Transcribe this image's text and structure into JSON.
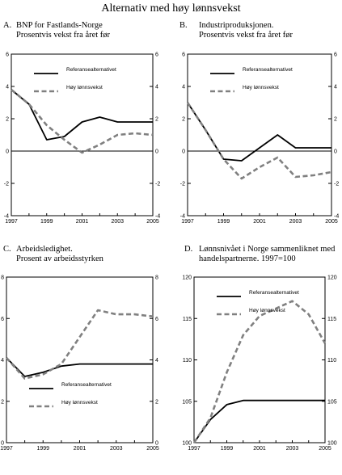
{
  "page": {
    "title": "Alternativ med høy lønnsvekst"
  },
  "chart_data": [
    {
      "type": "line",
      "panel_letter": "A.",
      "title_lines": [
        "BNP for Fastlands-Norge",
        "Prosentvis vekst fra året før"
      ],
      "x": [
        1997,
        1998,
        1999,
        2000,
        2001,
        2002,
        2003,
        2004,
        2005
      ],
      "xticks": [
        "1997",
        "1999",
        "2001",
        "2003",
        "2005"
      ],
      "ylim": [
        -4,
        6
      ],
      "yticks": [
        "-4",
        "-2",
        "0",
        "2",
        "4",
        "6"
      ],
      "zero_line": true,
      "legend_position": "top-left",
      "series": [
        {
          "name": "Referansealternativet",
          "style": "solid",
          "values": [
            3.8,
            2.9,
            0.7,
            0.9,
            1.8,
            2.1,
            1.8,
            1.8,
            1.8
          ]
        },
        {
          "name": "Høy lønnsvekst",
          "style": "dashed",
          "values": [
            3.8,
            2.9,
            1.6,
            0.7,
            -0.1,
            0.4,
            1.0,
            1.1,
            1.0
          ]
        }
      ]
    },
    {
      "type": "line",
      "panel_letter": "B.",
      "title_lines": [
        "Industriproduksjonen.",
        "Prosentvis vekst fra året før"
      ],
      "x": [
        1997,
        1998,
        1999,
        2000,
        2001,
        2002,
        2003,
        2004,
        2005
      ],
      "xticks": [
        "1997",
        "1999",
        "2001",
        "2003",
        "2005"
      ],
      "ylim": [
        -4,
        6
      ],
      "yticks": [
        "-4",
        "-2",
        "0",
        "2",
        "4",
        "6"
      ],
      "zero_line": true,
      "legend_position": "top-left",
      "series": [
        {
          "name": "Referansealternativet",
          "style": "solid",
          "values": [
            3.0,
            1.3,
            -0.5,
            -0.6,
            0.2,
            1.0,
            0.2,
            0.2,
            0.2
          ]
        },
        {
          "name": "Høy lønnsvekst",
          "style": "dashed",
          "values": [
            3.0,
            1.3,
            -0.5,
            -1.7,
            -1.0,
            -0.4,
            -1.6,
            -1.5,
            -1.3
          ]
        }
      ]
    },
    {
      "type": "line",
      "panel_letter": "C.",
      "title_lines": [
        "Arbeidsledighet.",
        "Prosent av arbeidsstyrken"
      ],
      "x": [
        1997,
        1998,
        1999,
        2000,
        2001,
        2002,
        2003,
        2004,
        2005
      ],
      "xticks": [
        "1997",
        "1999",
        "2001",
        "2003",
        "2005"
      ],
      "ylim": [
        0,
        8
      ],
      "yticks": [
        "0",
        "2",
        "4",
        "6",
        "8"
      ],
      "zero_line": false,
      "legend_position": "bottom-left",
      "series": [
        {
          "name": "Referansealternativet",
          "style": "solid",
          "values": [
            4.1,
            3.2,
            3.4,
            3.7,
            3.8,
            3.8,
            3.8,
            3.8,
            3.8
          ]
        },
        {
          "name": "Høy lønnsvekst",
          "style": "dashed",
          "values": [
            4.1,
            3.1,
            3.3,
            3.8,
            5.1,
            6.4,
            6.2,
            6.2,
            6.1
          ]
        }
      ]
    },
    {
      "type": "line",
      "panel_letter": "D.",
      "title_lines": [
        "Lønnsnivået i Norge sammenliknet med",
        "handelspartnerne. 1997=100"
      ],
      "x": [
        1997,
        1998,
        1999,
        2000,
        2001,
        2002,
        2003,
        2004,
        2005
      ],
      "xticks": [
        "1997",
        "1999",
        "2001",
        "2003",
        "2005"
      ],
      "ylim": [
        100,
        120
      ],
      "yticks": [
        "100",
        "105",
        "110",
        "115",
        "120"
      ],
      "zero_line": false,
      "legend_position": "top-left",
      "series": [
        {
          "name": "Referansealternativet",
          "style": "solid",
          "values": [
            100.0,
            102.8,
            104.6,
            105.1,
            105.1,
            105.1,
            105.1,
            105.1,
            105.1
          ]
        },
        {
          "name": "Høy lønnsvekst",
          "style": "dashed",
          "values": [
            100.0,
            103.0,
            108.5,
            113.0,
            115.3,
            116.2,
            117.1,
            115.5,
            112.0
          ]
        }
      ]
    }
  ]
}
